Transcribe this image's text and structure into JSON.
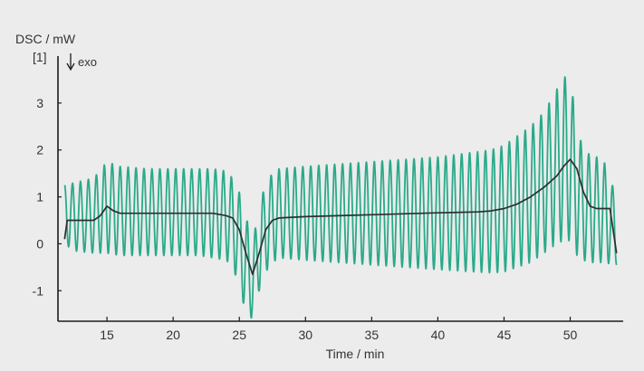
{
  "chart_data": {
    "type": "line",
    "ylabel": "DSC / mW",
    "yunit": "[1]",
    "exo_label": "exo",
    "xlabel": "Time / min",
    "xlim": [
      11.3,
      54
    ],
    "ylim": [
      -1.65,
      4.0
    ],
    "xticks": [
      15,
      20,
      25,
      30,
      35,
      40,
      45,
      50
    ],
    "yticks": [
      -1,
      0,
      1,
      2,
      3
    ],
    "grid": false,
    "legend": "none",
    "colors": {
      "modulated": "#2aaa8a",
      "average": "#2e2e2e",
      "axis": "#1c1c1c",
      "text": "#333333",
      "background": "#ececec"
    },
    "series": [
      {
        "key": "modulated",
        "style": "oscillating",
        "period_min": 0.6,
        "upper": {
          "x": [
            11.8,
            12.5,
            14.0,
            15.0,
            16.0,
            18.0,
            20.0,
            22.0,
            23.0,
            24.0,
            24.5,
            25.0,
            25.5,
            26.0,
            26.5,
            27.0,
            27.5,
            28.0,
            30.0,
            35.0,
            40.0,
            44.0,
            45.0,
            47.0,
            48.0,
            49.0,
            49.7,
            50.0,
            50.6,
            51.0,
            51.5,
            52.5,
            53.5
          ],
          "y": [
            1.25,
            1.3,
            1.4,
            1.75,
            1.65,
            1.6,
            1.6,
            1.6,
            1.6,
            1.55,
            1.4,
            1.1,
            0.6,
            0.0,
            0.8,
            1.3,
            1.5,
            1.6,
            1.65,
            1.75,
            1.85,
            2.0,
            2.1,
            2.5,
            2.8,
            3.3,
            3.6,
            3.5,
            2.4,
            2.0,
            1.9,
            1.8,
            1.0
          ]
        },
        "lower": {
          "x": [
            11.8,
            12.5,
            14.0,
            15.0,
            16.0,
            18.0,
            20.0,
            22.0,
            23.0,
            24.0,
            24.5,
            25.0,
            25.5,
            26.0,
            26.5,
            27.0,
            27.5,
            28.0,
            30.0,
            35.0,
            40.0,
            44.0,
            45.0,
            47.0,
            48.0,
            49.0,
            49.7,
            50.0,
            50.6,
            51.0,
            51.5,
            52.5,
            53.5
          ],
          "y": [
            0.0,
            -0.15,
            -0.2,
            -0.2,
            -0.25,
            -0.25,
            -0.25,
            -0.25,
            -0.3,
            -0.35,
            -0.5,
            -0.9,
            -1.5,
            -1.6,
            -1.0,
            -0.6,
            -0.4,
            -0.3,
            -0.35,
            -0.45,
            -0.55,
            -0.62,
            -0.6,
            -0.4,
            -0.2,
            0.0,
            0.1,
            0.05,
            -0.3,
            -0.35,
            -0.4,
            -0.4,
            -0.45
          ]
        }
      },
      {
        "key": "average",
        "style": "smooth",
        "x": [
          11.8,
          12.0,
          13.0,
          14.0,
          14.5,
          15.0,
          15.5,
          16.0,
          18.0,
          20.0,
          22.0,
          23.0,
          24.0,
          24.5,
          25.0,
          25.5,
          26.0,
          26.5,
          27.0,
          27.5,
          28.0,
          30.0,
          35.0,
          40.0,
          43.0,
          44.0,
          45.0,
          46.0,
          47.0,
          48.0,
          49.0,
          49.5,
          50.0,
          50.5,
          51.0,
          51.5,
          52.0,
          53.0,
          53.5
        ],
        "y": [
          0.1,
          0.5,
          0.5,
          0.5,
          0.6,
          0.8,
          0.7,
          0.65,
          0.65,
          0.65,
          0.65,
          0.65,
          0.6,
          0.55,
          0.3,
          -0.2,
          -0.65,
          -0.2,
          0.3,
          0.5,
          0.55,
          0.58,
          0.62,
          0.66,
          0.68,
          0.7,
          0.75,
          0.85,
          1.0,
          1.2,
          1.45,
          1.65,
          1.8,
          1.6,
          1.1,
          0.8,
          0.75,
          0.75,
          -0.2
        ]
      }
    ]
  }
}
